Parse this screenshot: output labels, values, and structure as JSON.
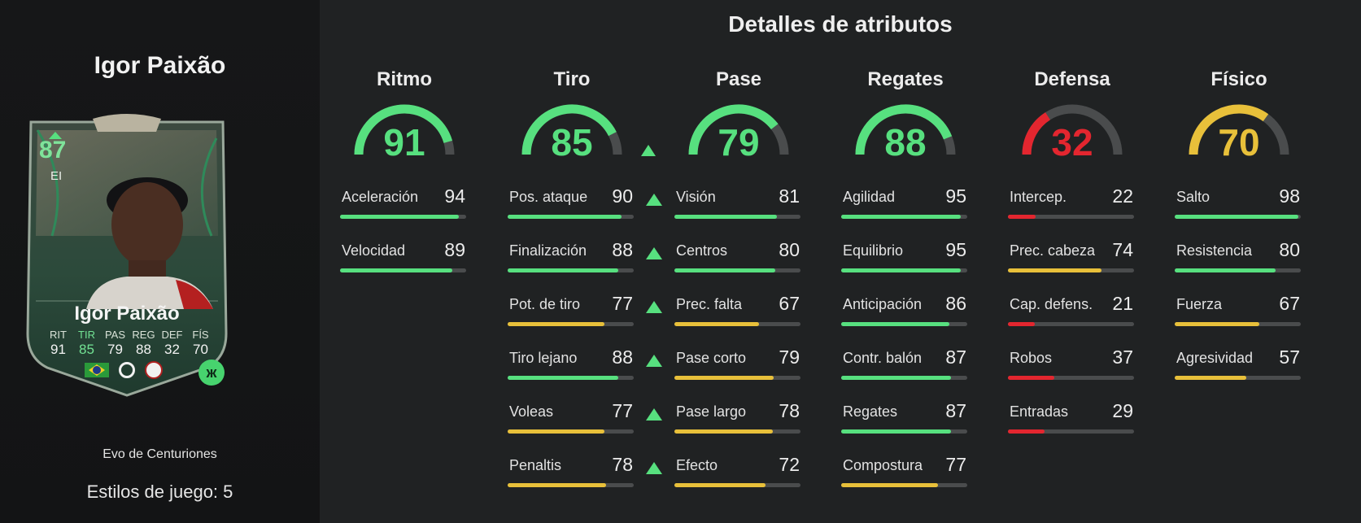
{
  "player": {
    "name": "Igor Paixão",
    "card": {
      "rating": "87",
      "position": "EI",
      "name": "Igor Paixão",
      "stats": [
        {
          "label": "RIT",
          "value": "91",
          "highlight": false
        },
        {
          "label": "TIR",
          "value": "85",
          "highlight": true
        },
        {
          "label": "PAS",
          "value": "79",
          "highlight": false
        },
        {
          "label": "REG",
          "value": "88",
          "highlight": false
        },
        {
          "label": "DEF",
          "value": "32",
          "highlight": false
        },
        {
          "label": "FÍS",
          "value": "70",
          "highlight": false
        }
      ],
      "evo_icon_glyph": "ж"
    },
    "evo_name": "Evo de Centuriones",
    "playstyles": "Estilos de juego: 5"
  },
  "title": "Detalles de atributos",
  "colors": {
    "green": "#57e07f",
    "yellow": "#e8c03a",
    "red": "#e3262f",
    "track": "#4a4c4d"
  },
  "categories": [
    {
      "title": "Ritmo",
      "value": 91,
      "color": "#57e07f",
      "upgraded": false,
      "stats": [
        {
          "name": "Aceleración",
          "value": 94,
          "up": false
        },
        {
          "name": "Velocidad",
          "value": 89,
          "up": false
        }
      ]
    },
    {
      "title": "Tiro",
      "value": 85,
      "color": "#57e07f",
      "upgraded": true,
      "stats": [
        {
          "name": "Pos. ataque",
          "value": 90,
          "up": true
        },
        {
          "name": "Finalización",
          "value": 88,
          "up": true
        },
        {
          "name": "Pot. de tiro",
          "value": 77,
          "up": true
        },
        {
          "name": "Tiro lejano",
          "value": 88,
          "up": true
        },
        {
          "name": "Voleas",
          "value": 77,
          "up": true
        },
        {
          "name": "Penaltis",
          "value": 78,
          "up": true
        }
      ]
    },
    {
      "title": "Pase",
      "value": 79,
      "color": "#57e07f",
      "upgraded": false,
      "stats": [
        {
          "name": "Visión",
          "value": 81,
          "up": false
        },
        {
          "name": "Centros",
          "value": 80,
          "up": false
        },
        {
          "name": "Prec. falta",
          "value": 67,
          "up": false
        },
        {
          "name": "Pase corto",
          "value": 79,
          "up": false
        },
        {
          "name": "Pase largo",
          "value": 78,
          "up": false
        },
        {
          "name": "Efecto",
          "value": 72,
          "up": false
        }
      ]
    },
    {
      "title": "Regates",
      "value": 88,
      "color": "#57e07f",
      "upgraded": false,
      "stats": [
        {
          "name": "Agilidad",
          "value": 95,
          "up": false
        },
        {
          "name": "Equilibrio",
          "value": 95,
          "up": false
        },
        {
          "name": "Anticipación",
          "value": 86,
          "up": false
        },
        {
          "name": "Contr. balón",
          "value": 87,
          "up": false
        },
        {
          "name": "Regates",
          "value": 87,
          "up": false
        },
        {
          "name": "Compostura",
          "value": 77,
          "up": false
        }
      ]
    },
    {
      "title": "Defensa",
      "value": 32,
      "color": "#e3262f",
      "upgraded": false,
      "stats": [
        {
          "name": "Intercep.",
          "value": 22,
          "up": false
        },
        {
          "name": "Prec. cabeza",
          "value": 74,
          "up": false
        },
        {
          "name": "Cap. defens.",
          "value": 21,
          "up": false
        },
        {
          "name": "Robos",
          "value": 37,
          "up": false
        },
        {
          "name": "Entradas",
          "value": 29,
          "up": false
        }
      ]
    },
    {
      "title": "Físico",
      "value": 70,
      "color": "#e8c03a",
      "upgraded": false,
      "stats": [
        {
          "name": "Salto",
          "value": 98,
          "up": false
        },
        {
          "name": "Resistencia",
          "value": 80,
          "up": false
        },
        {
          "name": "Fuerza",
          "value": 67,
          "up": false
        },
        {
          "name": "Agresividad",
          "value": 57,
          "up": false
        }
      ]
    }
  ]
}
